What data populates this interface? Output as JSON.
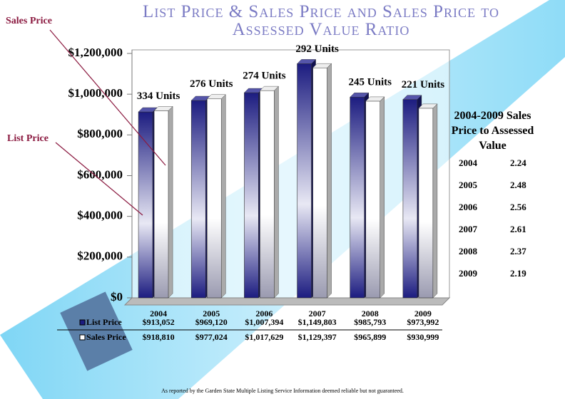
{
  "chart_data": {
    "type": "bar",
    "title": "List Price & Sales Price and Sales Price to Assessed Value Ratio",
    "categories": [
      "2004",
      "2005",
      "2006",
      "2007",
      "2008",
      "2009"
    ],
    "series": [
      {
        "name": "List Price",
        "color": "#1c1c80",
        "values": [
          913052,
          969120,
          1007394,
          1149803,
          985793,
          973992
        ],
        "value_labels": [
          "$913,052",
          "$969,120",
          "$1,007,394",
          "$1,149,803",
          "$985,793",
          "$973,992"
        ]
      },
      {
        "name": "Sales Price",
        "color": "#ffffff",
        "values": [
          918810,
          977024,
          1017629,
          1129397,
          965899,
          930999
        ],
        "value_labels": [
          "$918,810",
          "$977,024",
          "$1,017,629",
          "$1,129,397",
          "$965,899",
          "$930,999"
        ]
      }
    ],
    "unit_labels": [
      "334 Units",
      "276 Units",
      "274 Units",
      "292 Units",
      "245 Units",
      "221 Units"
    ],
    "ylim": [
      0,
      1200000
    ],
    "yticks": [
      {
        "value": 0,
        "label": "$0"
      },
      {
        "value": 200000,
        "label": "$200,000"
      },
      {
        "value": 400000,
        "label": "$400,000"
      },
      {
        "value": 600000,
        "label": "$600,000"
      },
      {
        "value": 800000,
        "label": "$800,000"
      },
      {
        "value": 1000000,
        "label": "$1,000,000"
      },
      {
        "value": 1200000,
        "label": "$1,200,000"
      }
    ],
    "annotations": [
      "Sales Price",
      "List Price"
    ],
    "ratio_table": {
      "title": "2004-2009 Sales Price to Assessed Value",
      "rows": [
        [
          "2004",
          2.24
        ],
        [
          "2005",
          2.48
        ],
        [
          "2006",
          2.56
        ],
        [
          "2007",
          2.61
        ],
        [
          "2008",
          2.37
        ],
        [
          "2009",
          2.19
        ]
      ]
    },
    "footer": "As reported by the Garden State Multiple Listing Service Information deemed reliable but not guaranteed."
  }
}
